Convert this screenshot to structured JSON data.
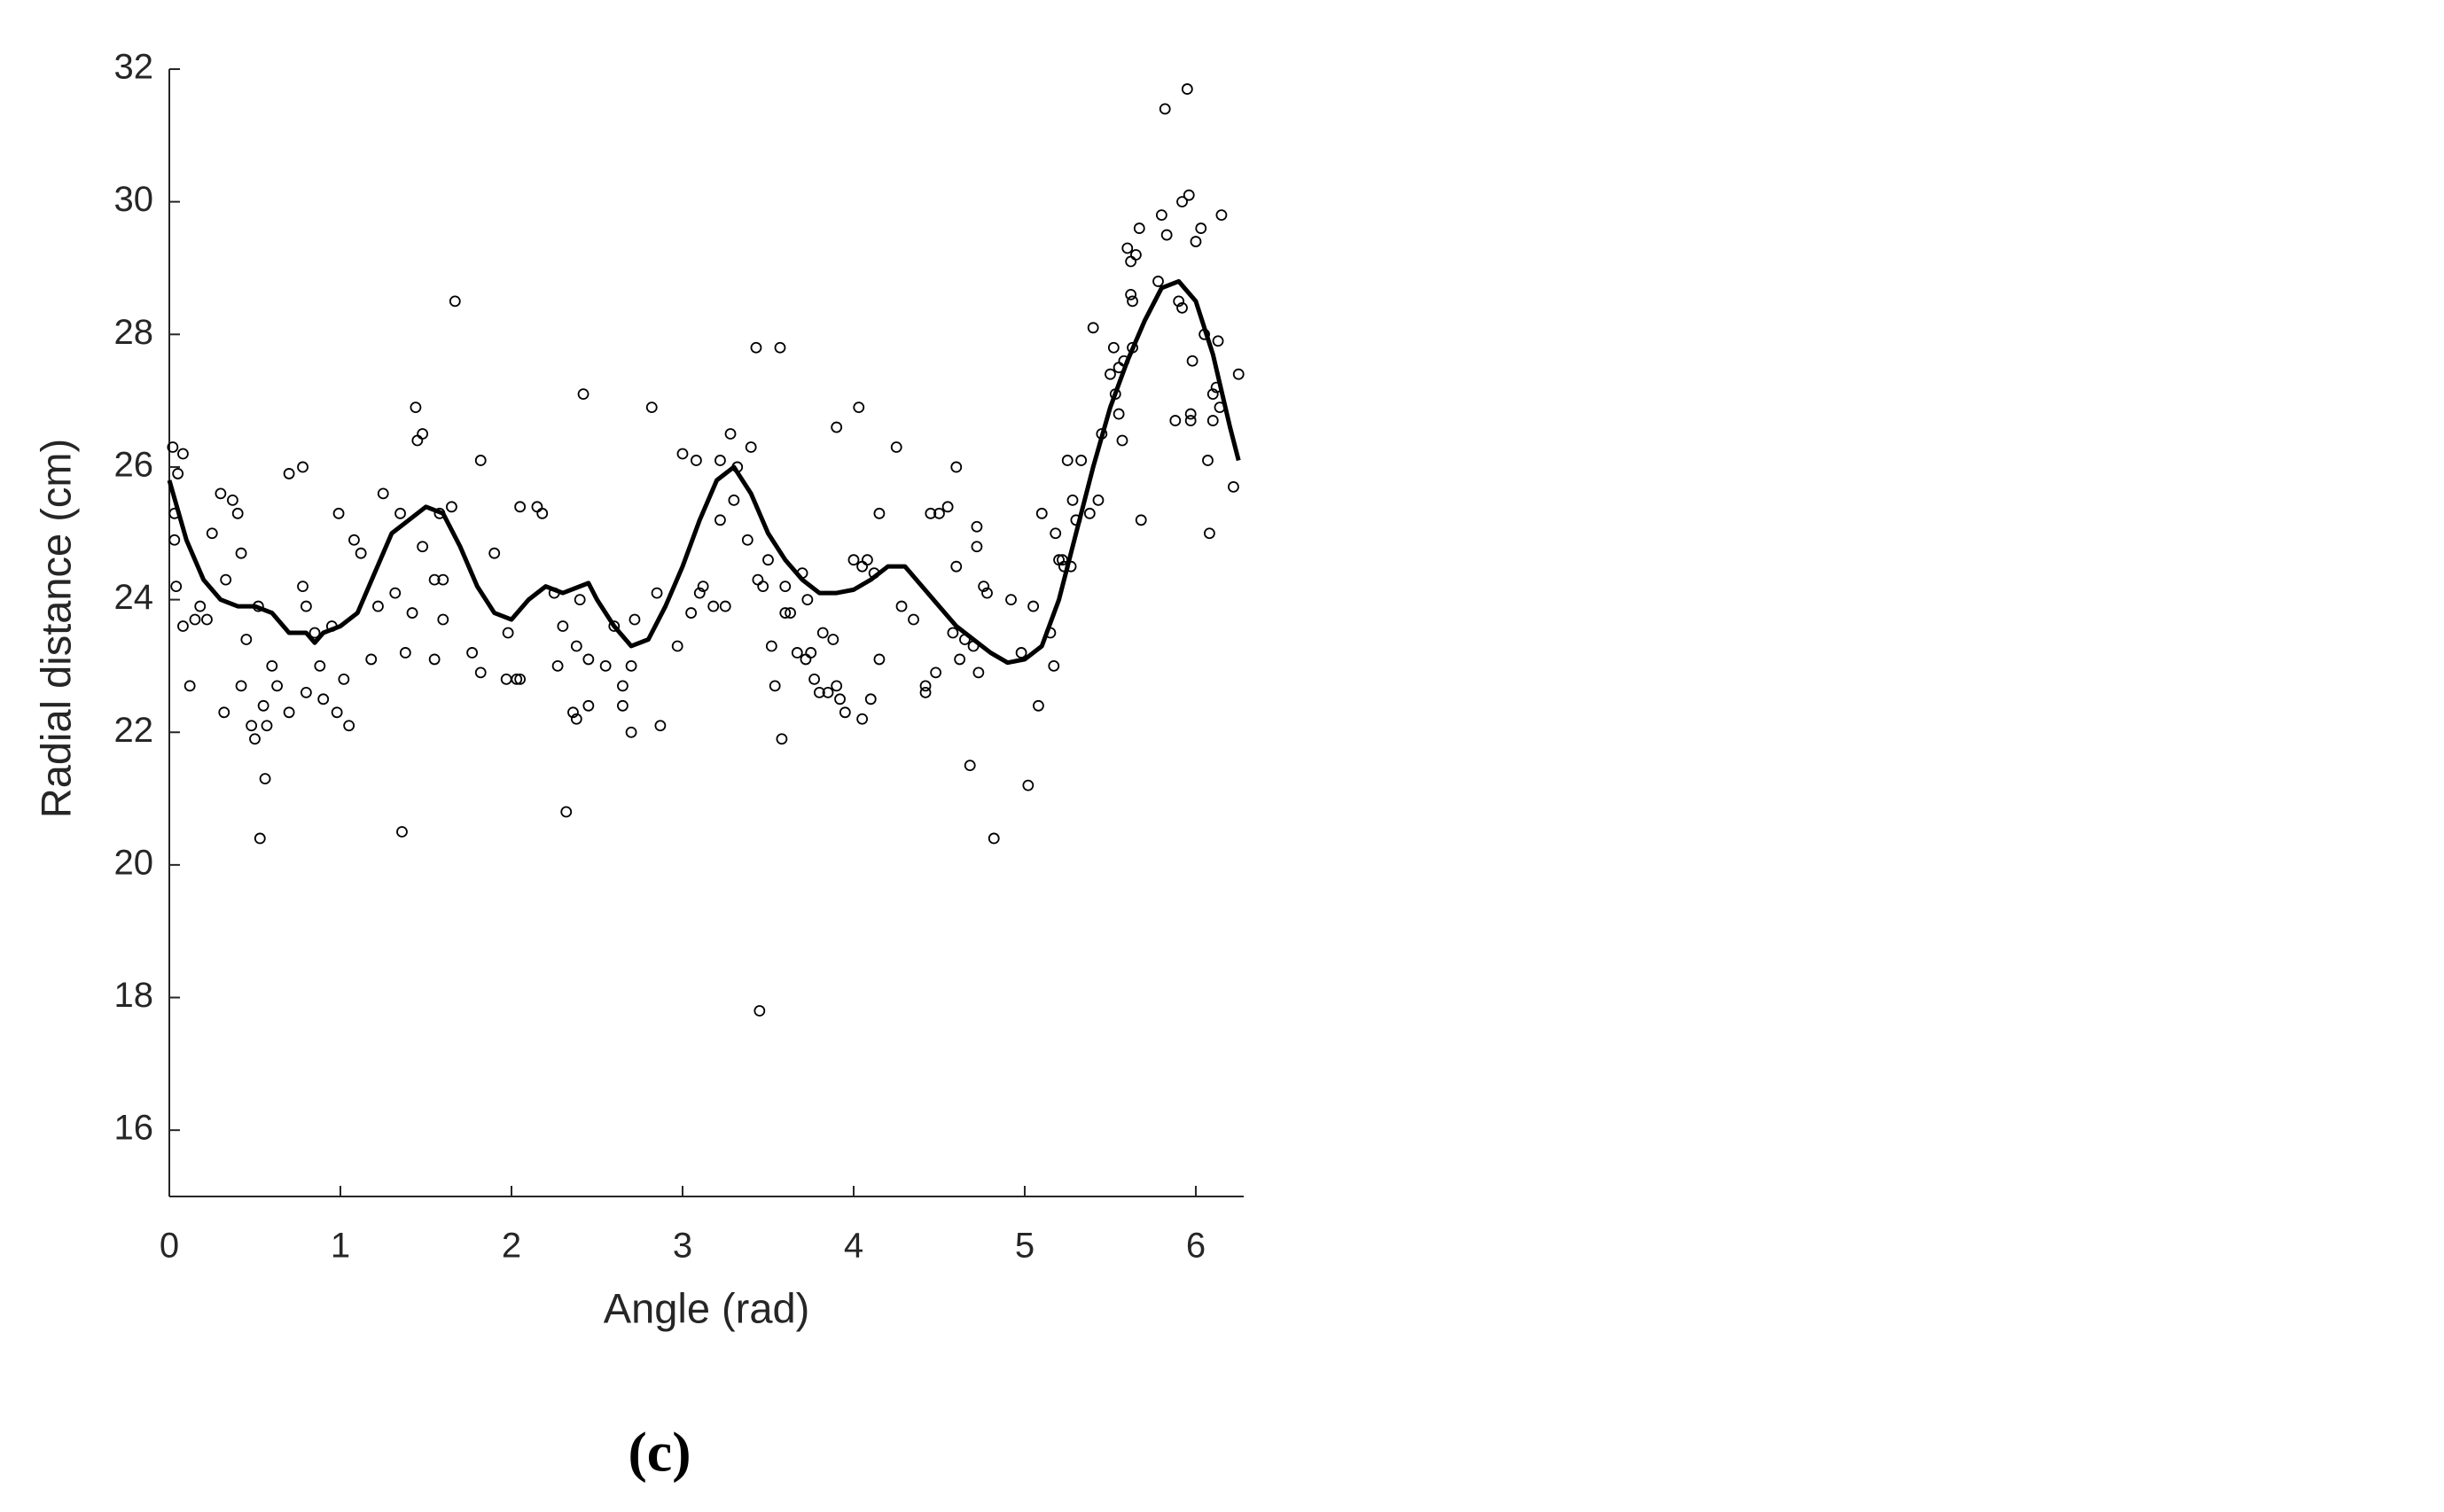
{
  "chart_data": {
    "type": "scatter",
    "xlabel": "Angle (rad)",
    "ylabel": "Radial distance (cm)",
    "caption": "(c)",
    "xlim": [
      0,
      6.28
    ],
    "xticks": [
      0,
      1,
      2,
      3,
      4,
      5,
      6
    ],
    "ylim": [
      15,
      32
    ],
    "yticks": [
      16,
      18,
      20,
      22,
      24,
      26,
      28,
      30,
      32
    ],
    "grid": false,
    "series": [
      {
        "type": "scatter",
        "color": "#000000",
        "x": [
          0.02,
          0.03,
          0.03,
          0.04,
          0.05,
          0.08,
          0.08,
          0.12,
          0.15,
          0.18,
          0.22,
          0.25,
          0.3,
          0.32,
          0.33,
          0.37,
          0.4,
          0.42,
          0.42,
          0.45,
          0.48,
          0.5,
          0.52,
          0.53,
          0.55,
          0.56,
          0.57,
          0.6,
          0.63,
          0.7,
          0.7,
          0.78,
          0.78,
          0.8,
          0.8,
          0.85,
          0.88,
          0.9,
          0.95,
          0.98,
          0.99,
          1.02,
          1.05,
          1.08,
          1.12,
          1.18,
          1.22,
          1.25,
          1.32,
          1.35,
          1.36,
          1.38,
          1.42,
          1.44,
          1.45,
          1.48,
          1.48,
          1.55,
          1.55,
          1.58,
          1.6,
          1.6,
          1.65,
          1.67,
          1.77,
          1.82,
          1.82,
          1.9,
          1.97,
          1.98,
          2.03,
          2.05,
          2.05,
          2.15,
          2.18,
          2.25,
          2.27,
          2.3,
          2.32,
          2.36,
          2.38,
          2.38,
          2.4,
          2.42,
          2.45,
          2.45,
          2.55,
          2.6,
          2.65,
          2.65,
          2.7,
          2.7,
          2.72,
          2.82,
          2.85,
          2.87,
          2.97,
          3.0,
          3.05,
          3.08,
          3.1,
          3.12,
          3.18,
          3.22,
          3.22,
          3.25,
          3.28,
          3.3,
          3.32,
          3.38,
          3.4,
          3.43,
          3.44,
          3.45,
          3.47,
          3.5,
          3.52,
          3.54,
          3.57,
          3.58,
          3.6,
          3.6,
          3.63,
          3.67,
          3.7,
          3.72,
          3.73,
          3.75,
          3.77,
          3.8,
          3.82,
          3.85,
          3.88,
          3.9,
          3.9,
          3.92,
          3.95,
          4.0,
          4.03,
          4.05,
          4.05,
          4.08,
          4.1,
          4.12,
          4.15,
          4.15,
          4.25,
          4.28,
          4.35,
          4.42,
          4.42,
          4.45,
          4.48,
          4.5,
          4.55,
          4.58,
          4.6,
          4.6,
          4.62,
          4.65,
          4.68,
          4.7,
          4.72,
          4.72,
          4.73,
          4.76,
          4.78,
          4.82,
          4.92,
          4.98,
          5.02,
          5.05,
          5.08,
          5.1,
          5.15,
          5.17,
          5.18,
          5.2,
          5.22,
          5.23,
          5.25,
          5.27,
          5.28,
          5.3,
          5.33,
          5.38,
          5.4,
          5.43,
          5.45,
          5.5,
          5.52,
          5.53,
          5.55,
          5.55,
          5.57,
          5.58,
          5.6,
          5.62,
          5.62,
          5.63,
          5.63,
          5.65,
          5.67,
          5.68,
          5.78,
          5.8,
          5.82,
          5.83,
          5.88,
          5.9,
          5.92,
          5.92,
          5.95,
          5.96,
          5.97,
          5.97,
          5.98,
          6.0,
          6.03,
          6.05,
          6.07,
          6.08,
          6.1,
          6.1,
          6.12,
          6.13,
          6.14,
          6.15,
          6.22,
          6.25
        ],
        "values": [
          26.3,
          25.3,
          24.9,
          24.2,
          25.9,
          26.2,
          23.6,
          22.7,
          23.7,
          23.9,
          23.7,
          25.0,
          25.6,
          22.3,
          24.3,
          25.5,
          25.3,
          24.7,
          22.7,
          23.4,
          22.1,
          21.9,
          23.9,
          20.4,
          22.4,
          21.3,
          22.1,
          23.0,
          22.7,
          22.3,
          25.9,
          26.0,
          24.2,
          23.9,
          22.6,
          23.5,
          23.0,
          22.5,
          23.6,
          22.3,
          25.3,
          22.8,
          22.1,
          24.9,
          24.7,
          23.1,
          23.9,
          25.6,
          24.1,
          25.3,
          20.5,
          23.2,
          23.8,
          26.9,
          26.4,
          26.5,
          24.8,
          24.3,
          23.1,
          25.3,
          24.3,
          23.7,
          25.4,
          28.5,
          23.2,
          22.9,
          26.1,
          24.7,
          22.8,
          23.5,
          22.8,
          25.4,
          22.8,
          25.4,
          25.3,
          24.1,
          23.0,
          23.6,
          20.8,
          22.3,
          22.2,
          23.3,
          24.0,
          27.1,
          22.4,
          23.1,
          23.0,
          23.6,
          22.7,
          22.4,
          23.0,
          22.0,
          23.7,
          26.9,
          24.1,
          22.1,
          23.3,
          26.2,
          23.8,
          26.1,
          24.1,
          24.2,
          23.9,
          26.1,
          25.2,
          23.9,
          26.5,
          25.5,
          26.0,
          24.9,
          26.3,
          27.8,
          24.3,
          17.8,
          24.2,
          24.6,
          23.3,
          22.7,
          27.8,
          21.9,
          24.2,
          23.8,
          23.8,
          23.2,
          24.4,
          23.1,
          24.0,
          23.2,
          22.8,
          22.6,
          23.5,
          22.6,
          23.4,
          26.6,
          22.7,
          22.5,
          22.3,
          24.6,
          26.9,
          24.5,
          22.2,
          24.6,
          22.5,
          24.4,
          23.1,
          25.3,
          26.3,
          23.9,
          23.7,
          22.7,
          22.6,
          25.3,
          22.9,
          25.3,
          25.4,
          23.5,
          26.0,
          24.5,
          23.1,
          23.4,
          21.5,
          23.3,
          25.1,
          24.8,
          22.9,
          24.2,
          24.1,
          20.4,
          24.0,
          23.2,
          21.2,
          23.9,
          22.4,
          25.3,
          23.5,
          23.0,
          25.0,
          24.6,
          24.6,
          24.5,
          26.1,
          24.5,
          25.5,
          25.2,
          26.1,
          25.3,
          28.1,
          25.5,
          26.5,
          27.4,
          27.8,
          27.1,
          27.5,
          26.8,
          26.4,
          27.6,
          29.3,
          29.1,
          28.6,
          27.8,
          28.5,
          29.2,
          29.6,
          25.2,
          28.8,
          29.8,
          31.4,
          29.5,
          26.7,
          28.5,
          28.4,
          30.0,
          31.7,
          30.1,
          26.8,
          26.7,
          27.6,
          29.4,
          29.6,
          28.0,
          26.1,
          25.0,
          27.1,
          26.7,
          27.2,
          27.9,
          26.9,
          29.8,
          25.7,
          27.4
        ]
      },
      {
        "type": "line",
        "color": "#000000",
        "x": [
          0,
          0.1,
          0.2,
          0.3,
          0.4,
          0.5,
          0.6,
          0.7,
          0.8,
          0.85,
          0.9,
          1.0,
          1.1,
          1.2,
          1.3,
          1.4,
          1.5,
          1.6,
          1.7,
          1.8,
          1.9,
          2.0,
          2.1,
          2.2,
          2.3,
          2.4,
          2.45,
          2.5,
          2.6,
          2.7,
          2.8,
          2.9,
          3.0,
          3.1,
          3.2,
          3.3,
          3.4,
          3.5,
          3.6,
          3.7,
          3.8,
          3.9,
          4.0,
          4.1,
          4.2,
          4.3,
          4.4,
          4.5,
          4.6,
          4.7,
          4.8,
          4.9,
          5.0,
          5.1,
          5.2,
          5.3,
          5.4,
          5.5,
          5.6,
          5.7,
          5.8,
          5.9,
          6.0,
          6.1,
          6.2,
          6.25
        ],
        "values": [
          25.8,
          24.9,
          24.3,
          24.0,
          23.9,
          23.9,
          23.8,
          23.5,
          23.5,
          23.35,
          23.5,
          23.6,
          23.8,
          24.4,
          25.0,
          25.2,
          25.4,
          25.3,
          24.8,
          24.2,
          23.8,
          23.7,
          24.0,
          24.2,
          24.1,
          24.2,
          24.25,
          24.0,
          23.6,
          23.3,
          23.4,
          23.9,
          24.5,
          25.2,
          25.8,
          26.0,
          25.6,
          25.0,
          24.6,
          24.3,
          24.1,
          24.1,
          24.15,
          24.3,
          24.5,
          24.5,
          24.2,
          23.9,
          23.6,
          23.4,
          23.2,
          23.05,
          23.1,
          23.3,
          24.0,
          25.0,
          26.0,
          26.9,
          27.6,
          28.2,
          28.7,
          28.8,
          28.5,
          27.7,
          26.6,
          26.1
        ]
      }
    ]
  }
}
